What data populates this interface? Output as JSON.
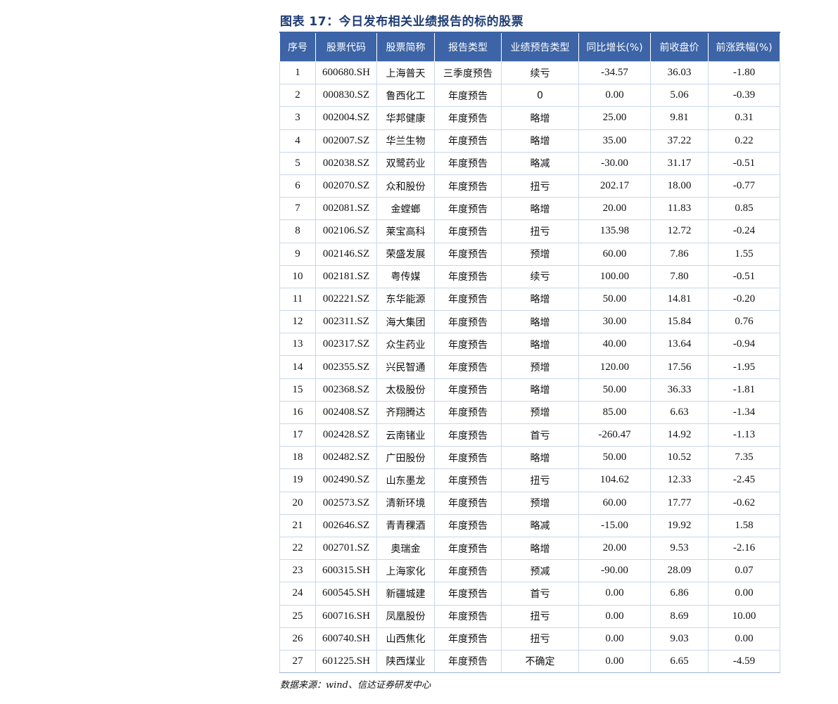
{
  "title": "图表 17：今日发布相关业绩报告的标的股票",
  "headers": [
    "序号",
    "股票代码",
    "股票简称",
    "报告类型",
    "业绩预告类型",
    "同比增长(%)",
    "前收盘价",
    "前涨跌幅(%)"
  ],
  "rows": [
    [
      "1",
      "600680.SH",
      "上海普天",
      "三季度预告",
      "续亏",
      "-34.57",
      "36.03",
      "-1.80"
    ],
    [
      "2",
      "000830.SZ",
      "鲁西化工",
      "年度预告",
      "0",
      "0.00",
      "5.06",
      "-0.39"
    ],
    [
      "3",
      "002004.SZ",
      "华邦健康",
      "年度预告",
      "略增",
      "25.00",
      "9.81",
      "0.31"
    ],
    [
      "4",
      "002007.SZ",
      "华兰生物",
      "年度预告",
      "略增",
      "35.00",
      "37.22",
      "0.22"
    ],
    [
      "5",
      "002038.SZ",
      "双鹭药业",
      "年度预告",
      "略减",
      "-30.00",
      "31.17",
      "-0.51"
    ],
    [
      "6",
      "002070.SZ",
      "众和股份",
      "年度预告",
      "扭亏",
      "202.17",
      "18.00",
      "-0.77"
    ],
    [
      "7",
      "002081.SZ",
      "金螳螂",
      "年度预告",
      "略增",
      "20.00",
      "11.83",
      "0.85"
    ],
    [
      "8",
      "002106.SZ",
      "莱宝高科",
      "年度预告",
      "扭亏",
      "135.98",
      "12.72",
      "-0.24"
    ],
    [
      "9",
      "002146.SZ",
      "荣盛发展",
      "年度预告",
      "预增",
      "60.00",
      "7.86",
      "1.55"
    ],
    [
      "10",
      "002181.SZ",
      "粤传媒",
      "年度预告",
      "续亏",
      "100.00",
      "7.80",
      "-0.51"
    ],
    [
      "11",
      "002221.SZ",
      "东华能源",
      "年度预告",
      "略增",
      "50.00",
      "14.81",
      "-0.20"
    ],
    [
      "12",
      "002311.SZ",
      "海大集团",
      "年度预告",
      "略增",
      "30.00",
      "15.84",
      "0.76"
    ],
    [
      "13",
      "002317.SZ",
      "众生药业",
      "年度预告",
      "略增",
      "40.00",
      "13.64",
      "-0.94"
    ],
    [
      "14",
      "002355.SZ",
      "兴民智通",
      "年度预告",
      "预增",
      "120.00",
      "17.56",
      "-1.95"
    ],
    [
      "15",
      "002368.SZ",
      "太极股份",
      "年度预告",
      "略增",
      "50.00",
      "36.33",
      "-1.81"
    ],
    [
      "16",
      "002408.SZ",
      "齐翔腾达",
      "年度预告",
      "预增",
      "85.00",
      "6.63",
      "-1.34"
    ],
    [
      "17",
      "002428.SZ",
      "云南锗业",
      "年度预告",
      "首亏",
      "-260.47",
      "14.92",
      "-1.13"
    ],
    [
      "18",
      "002482.SZ",
      "广田股份",
      "年度预告",
      "略增",
      "50.00",
      "10.52",
      "7.35"
    ],
    [
      "19",
      "002490.SZ",
      "山东墨龙",
      "年度预告",
      "扭亏",
      "104.62",
      "12.33",
      "-2.45"
    ],
    [
      "20",
      "002573.SZ",
      "清新环境",
      "年度预告",
      "预增",
      "60.00",
      "17.77",
      "-0.62"
    ],
    [
      "21",
      "002646.SZ",
      "青青稞酒",
      "年度预告",
      "略减",
      "-15.00",
      "19.92",
      "1.58"
    ],
    [
      "22",
      "002701.SZ",
      "奥瑞金",
      "年度预告",
      "略增",
      "20.00",
      "9.53",
      "-2.16"
    ],
    [
      "23",
      "600315.SH",
      "上海家化",
      "年度预告",
      "预减",
      "-90.00",
      "28.09",
      "0.07"
    ],
    [
      "24",
      "600545.SH",
      "新疆城建",
      "年度预告",
      "首亏",
      "0.00",
      "6.86",
      "0.00"
    ],
    [
      "25",
      "600716.SH",
      "凤凰股份",
      "年度预告",
      "扭亏",
      "0.00",
      "8.69",
      "10.00"
    ],
    [
      "26",
      "600740.SH",
      "山西焦化",
      "年度预告",
      "扭亏",
      "0.00",
      "9.03",
      "0.00"
    ],
    [
      "27",
      "601225.SH",
      "陕西煤业",
      "年度预告",
      "不确定",
      "0.00",
      "6.65",
      "-4.59"
    ]
  ],
  "source": "数据来源：wind、信达证券研发中心",
  "colors": {
    "header_bg": "#3c64a6",
    "title": "#1f3c73",
    "grid": "#c9d7ec"
  }
}
